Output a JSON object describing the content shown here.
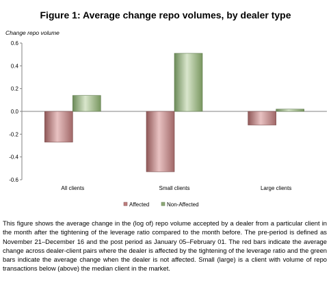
{
  "chart_data": {
    "type": "bar",
    "title": "Figure 1: Average change repo volumes, by dealer type",
    "ylabel": "Change repo volume",
    "xlabel": "",
    "categories": [
      "All clients",
      "Small clients",
      "Large clients"
    ],
    "series": [
      {
        "name": "Affected",
        "values": [
          -0.27,
          -0.53,
          -0.12
        ],
        "color": "#c07f7f"
      },
      {
        "name": "Non-Affected",
        "values": [
          0.14,
          0.51,
          0.02
        ],
        "color": "#8fa878"
      }
    ],
    "ylim": [
      -0.6,
      0.6
    ],
    "yticks": [
      "0.6",
      "0.4",
      "0.2",
      "0.0",
      "-0.2",
      "-0.4",
      "-0.6"
    ],
    "ytick_values": [
      0.6,
      0.4,
      0.2,
      0.0,
      -0.2,
      -0.4,
      -0.6
    ],
    "grid": false,
    "legend_position": "bottom"
  },
  "caption": "This figure shows the average change in the (log of) repo volume accepted by a dealer from a particular client in the month after the tightening of the leverage ratio compared to the month before. The pre-period is defined as November 21–December 16 and the post period as January 05–February 01. The red bars indicate the average change across dealer-client pairs where the dealer is affected by the tightening of the leverage ratio and the green bars indicate the average change when the dealer is not affected. Small (large) is a client with volume of repo transactions below (above) the median client in the market."
}
